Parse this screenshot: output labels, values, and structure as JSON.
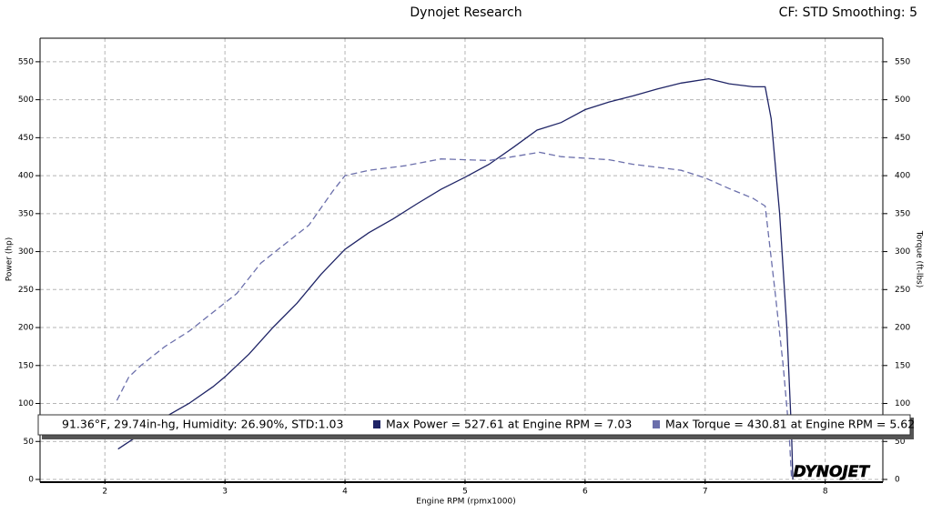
{
  "chart_data": {
    "type": "line",
    "title": "Dynojet Research",
    "subtitle": "CF: STD Smoothing: 5",
    "x_label": "Engine RPM (rpmx1000)",
    "y_label": "Power (hp)",
    "y2_label": "Torque (ft-lbs)",
    "conditions": "91.36°F, 29.74in-hg, Humidity: 26.90%, STD:1.03",
    "logo": "DYNOJET",
    "xlim": [
      1.46,
      8.48
    ],
    "xticks": [
      2,
      3,
      4,
      5,
      6,
      7,
      8
    ],
    "ylim": [
      0,
      581
    ],
    "yticks": [
      0,
      50,
      100,
      150,
      200,
      250,
      300,
      350,
      400,
      450,
      500,
      550
    ],
    "y2lim": [
      0,
      581
    ],
    "y2ticks": [
      0,
      50,
      100,
      150,
      200,
      250,
      300,
      350,
      400,
      450,
      500,
      550
    ],
    "grid": true,
    "series": [
      {
        "name": "Max Power = 527.61 at Engine RPM = 7.03",
        "color": "#1f2466",
        "style": "solid",
        "x": [
          2.11,
          2.3,
          2.5,
          2.7,
          2.9,
          3.0,
          3.2,
          3.4,
          3.6,
          3.8,
          4.0,
          4.2,
          4.4,
          4.6,
          4.8,
          5.0,
          5.2,
          5.4,
          5.6,
          5.8,
          6.0,
          6.2,
          6.4,
          6.6,
          6.8,
          7.03,
          7.2,
          7.4,
          7.5,
          7.55,
          7.62,
          7.68,
          7.72,
          7.73
        ],
        "values": [
          40,
          60,
          82,
          100,
          122,
          135,
          165,
          200,
          232,
          270,
          303,
          325,
          343,
          363,
          382,
          398,
          415,
          437,
          460,
          470,
          487,
          497,
          505,
          514,
          522,
          527.61,
          521,
          517,
          517,
          475,
          350,
          200,
          60,
          0
        ]
      },
      {
        "name": "Max Torque = 430.81 at Engine RPM = 5.62",
        "color": "#6b6fab",
        "style": "dashed",
        "axis": "y2",
        "x": [
          2.1,
          2.2,
          2.3,
          2.5,
          2.7,
          2.9,
          3.1,
          3.3,
          3.5,
          3.7,
          3.9,
          4.0,
          4.2,
          4.5,
          4.8,
          5.0,
          5.2,
          5.4,
          5.62,
          5.8,
          6.0,
          6.2,
          6.4,
          6.8,
          7.0,
          7.2,
          7.4,
          7.5,
          7.58,
          7.65,
          7.7,
          7.72
        ],
        "values": [
          104,
          135,
          150,
          175,
          195,
          220,
          245,
          285,
          310,
          335,
          380,
          400,
          407,
          413,
          422,
          421,
          420,
          425,
          430.81,
          425,
          423,
          421,
          415,
          407,
          397,
          383,
          370,
          360,
          250,
          150,
          60,
          0
        ]
      }
    ]
  }
}
